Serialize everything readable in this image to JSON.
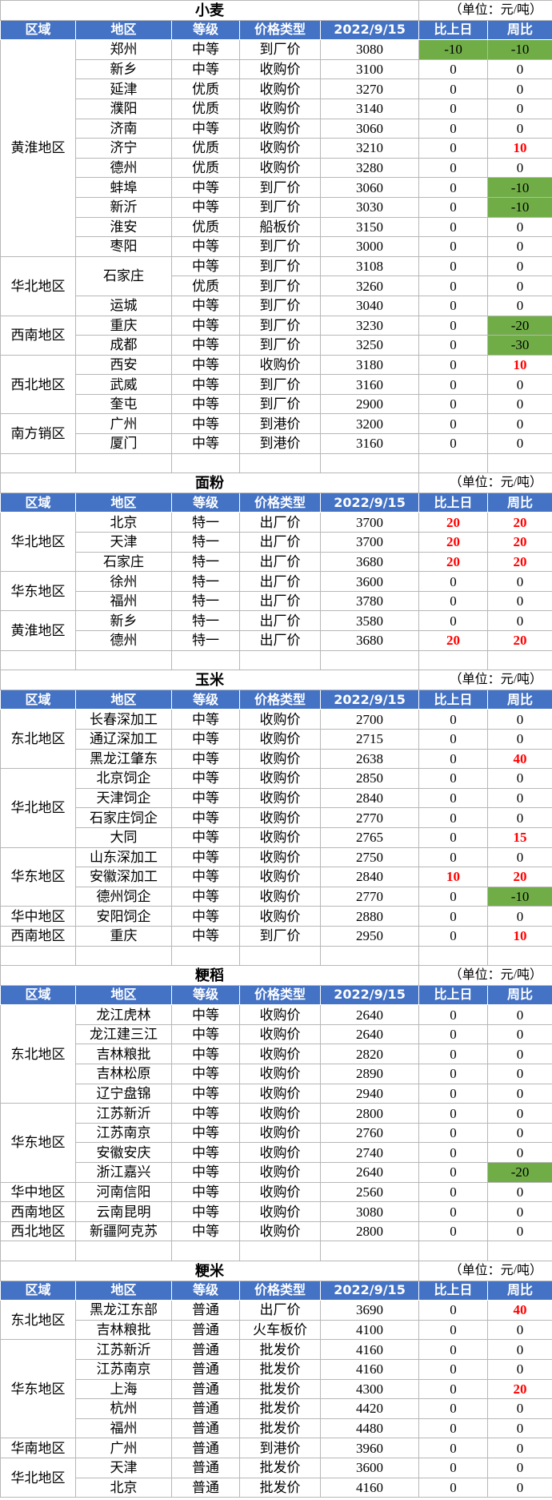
{
  "sections": [
    {
      "title": "小麦",
      "unit": "（单位：元/吨）",
      "headers": [
        "区域",
        "地区",
        "等级",
        "价格类型",
        "2022/9/15",
        "比上日",
        "周比"
      ],
      "groups": [
        {
          "region": "黄淮地区",
          "areas": [
            [
              "郑州",
              [
                [
                  "中等",
                  "到厂价",
                  3080,
                  -10,
                  -10
                ]
              ]
            ],
            [
              "新乡",
              [
                [
                  "中等",
                  "收购价",
                  3100,
                  0,
                  0
                ]
              ]
            ],
            [
              "延津",
              [
                [
                  "优质",
                  "收购价",
                  3270,
                  0,
                  0
                ]
              ]
            ],
            [
              "濮阳",
              [
                [
                  "优质",
                  "收购价",
                  3140,
                  0,
                  0
                ]
              ]
            ],
            [
              "济南",
              [
                [
                  "中等",
                  "收购价",
                  3060,
                  0,
                  0
                ]
              ]
            ],
            [
              "济宁",
              [
                [
                  "优质",
                  "收购价",
                  3210,
                  0,
                  10
                ]
              ]
            ],
            [
              "德州",
              [
                [
                  "优质",
                  "收购价",
                  3280,
                  0,
                  0
                ]
              ]
            ],
            [
              "蚌埠",
              [
                [
                  "中等",
                  "到厂价",
                  3060,
                  0,
                  -10
                ]
              ]
            ],
            [
              "新沂",
              [
                [
                  "中等",
                  "到厂价",
                  3030,
                  0,
                  -10
                ]
              ]
            ],
            [
              "淮安",
              [
                [
                  "优质",
                  "船板价",
                  3150,
                  0,
                  0
                ]
              ]
            ],
            [
              "枣阳",
              [
                [
                  "中等",
                  "到厂价",
                  3000,
                  0,
                  0
                ]
              ]
            ]
          ]
        },
        {
          "region": "华北地区",
          "areas": [
            [
              "石家庄",
              [
                [
                  "中等",
                  "到厂价",
                  3108,
                  0,
                  0
                ],
                [
                  "优质",
                  "到厂价",
                  3260,
                  0,
                  0
                ]
              ]
            ],
            [
              "运城",
              [
                [
                  "中等",
                  "到厂价",
                  3040,
                  0,
                  0
                ]
              ]
            ]
          ]
        },
        {
          "region": "西南地区",
          "areas": [
            [
              "重庆",
              [
                [
                  "中等",
                  "到厂价",
                  3230,
                  0,
                  -20
                ]
              ]
            ],
            [
              "成都",
              [
                [
                  "中等",
                  "到厂价",
                  3250,
                  0,
                  -30
                ]
              ]
            ]
          ]
        },
        {
          "region": "西北地区",
          "areas": [
            [
              "西安",
              [
                [
                  "中等",
                  "收购价",
                  3180,
                  0,
                  10
                ]
              ]
            ],
            [
              "武威",
              [
                [
                  "中等",
                  "到厂价",
                  3160,
                  0,
                  0
                ]
              ]
            ],
            [
              "奎屯",
              [
                [
                  "中等",
                  "到厂价",
                  2900,
                  0,
                  0
                ]
              ]
            ]
          ]
        },
        {
          "region": "南方销区",
          "areas": [
            [
              "广州",
              [
                [
                  "中等",
                  "到港价",
                  3200,
                  0,
                  0
                ]
              ]
            ],
            [
              "厦门",
              [
                [
                  "中等",
                  "到港价",
                  3160,
                  0,
                  0
                ]
              ]
            ]
          ]
        }
      ]
    },
    {
      "title": "面粉",
      "unit": "（单位：元/吨）",
      "headers": [
        "区域",
        "地区",
        "等级",
        "价格类型",
        "2022/9/15",
        "比上日",
        "周比"
      ],
      "groups": [
        {
          "region": "华北地区",
          "areas": [
            [
              "北京",
              [
                [
                  "特一",
                  "出厂价",
                  3700,
                  20,
                  20
                ]
              ]
            ],
            [
              "天津",
              [
                [
                  "特一",
                  "出厂价",
                  3700,
                  20,
                  20
                ]
              ]
            ],
            [
              "石家庄",
              [
                [
                  "特一",
                  "出厂价",
                  3680,
                  20,
                  20
                ]
              ]
            ]
          ]
        },
        {
          "region": "华东地区",
          "areas": [
            [
              "徐州",
              [
                [
                  "特一",
                  "出厂价",
                  3600,
                  0,
                  0
                ]
              ]
            ],
            [
              "福州",
              [
                [
                  "特一",
                  "出厂价",
                  3780,
                  0,
                  0
                ]
              ]
            ]
          ]
        },
        {
          "region": "黄淮地区",
          "areas": [
            [
              "新乡",
              [
                [
                  "特一",
                  "出厂价",
                  3580,
                  0,
                  0
                ]
              ]
            ],
            [
              "德州",
              [
                [
                  "特一",
                  "出厂价",
                  3680,
                  20,
                  20
                ]
              ]
            ]
          ]
        }
      ]
    },
    {
      "title": "玉米",
      "unit": "（单位：元/吨）",
      "headers": [
        "区域",
        "地区",
        "等级",
        "价格类型",
        "2022/9/15",
        "比上日",
        "周比"
      ],
      "groups": [
        {
          "region": "东北地区",
          "areas": [
            [
              "长春深加工",
              [
                [
                  "中等",
                  "收购价",
                  2700,
                  0,
                  0
                ]
              ]
            ],
            [
              "通辽深加工",
              [
                [
                  "中等",
                  "收购价",
                  2715,
                  0,
                  0
                ]
              ]
            ],
            [
              "黑龙江肇东",
              [
                [
                  "中等",
                  "收购价",
                  2638,
                  0,
                  40
                ]
              ]
            ]
          ]
        },
        {
          "region": "华北地区",
          "areas": [
            [
              "北京饲企",
              [
                [
                  "中等",
                  "收购价",
                  2850,
                  0,
                  0
                ]
              ]
            ],
            [
              "天津饲企",
              [
                [
                  "中等",
                  "收购价",
                  2840,
                  0,
                  0
                ]
              ]
            ],
            [
              "石家庄饲企",
              [
                [
                  "中等",
                  "收购价",
                  2770,
                  0,
                  0
                ]
              ]
            ],
            [
              "大同",
              [
                [
                  "中等",
                  "收购价",
                  2765,
                  0,
                  15
                ]
              ]
            ]
          ]
        },
        {
          "region": "华东地区",
          "areas": [
            [
              "山东深加工",
              [
                [
                  "中等",
                  "收购价",
                  2750,
                  0,
                  0
                ]
              ]
            ],
            [
              "安徽深加工",
              [
                [
                  "中等",
                  "收购价",
                  2840,
                  10,
                  20
                ]
              ]
            ],
            [
              "德州饲企",
              [
                [
                  "中等",
                  "收购价",
                  2770,
                  0,
                  -10
                ]
              ]
            ]
          ]
        },
        {
          "region": "华中地区",
          "areas": [
            [
              "安阳饲企",
              [
                [
                  "中等",
                  "收购价",
                  2880,
                  0,
                  0
                ]
              ]
            ]
          ]
        },
        {
          "region": "西南地区",
          "areas": [
            [
              "重庆",
              [
                [
                  "中等",
                  "到厂价",
                  2950,
                  0,
                  10
                ]
              ]
            ]
          ]
        }
      ]
    },
    {
      "title": "粳稻",
      "unit": "（单位：元/吨）",
      "headers": [
        "区域",
        "地区",
        "等级",
        "价格类型",
        "2022/9/15",
        "比上日",
        "周比"
      ],
      "groups": [
        {
          "region": "东北地区",
          "areas": [
            [
              "龙江虎林",
              [
                [
                  "中等",
                  "收购价",
                  2640,
                  0,
                  0
                ]
              ]
            ],
            [
              "龙江建三江",
              [
                [
                  "中等",
                  "收购价",
                  2640,
                  0,
                  0
                ]
              ]
            ],
            [
              "吉林粮批",
              [
                [
                  "中等",
                  "收购价",
                  2820,
                  0,
                  0
                ]
              ]
            ],
            [
              "吉林松原",
              [
                [
                  "中等",
                  "收购价",
                  2890,
                  0,
                  0
                ]
              ]
            ],
            [
              "辽宁盘锦",
              [
                [
                  "中等",
                  "收购价",
                  2940,
                  0,
                  0
                ]
              ]
            ]
          ]
        },
        {
          "region": "华东地区",
          "areas": [
            [
              "江苏新沂",
              [
                [
                  "中等",
                  "收购价",
                  2800,
                  0,
                  0
                ]
              ]
            ],
            [
              "江苏南京",
              [
                [
                  "中等",
                  "收购价",
                  2760,
                  0,
                  0
                ]
              ]
            ],
            [
              "安徽安庆",
              [
                [
                  "中等",
                  "收购价",
                  2740,
                  0,
                  0
                ]
              ]
            ],
            [
              "浙江嘉兴",
              [
                [
                  "中等",
                  "收购价",
                  2640,
                  0,
                  -20
                ]
              ]
            ]
          ]
        },
        {
          "region": "华中地区",
          "areas": [
            [
              "河南信阳",
              [
                [
                  "中等",
                  "收购价",
                  2560,
                  0,
                  0
                ]
              ]
            ]
          ]
        },
        {
          "region": "西南地区",
          "areas": [
            [
              "云南昆明",
              [
                [
                  "中等",
                  "收购价",
                  3080,
                  0,
                  0
                ]
              ]
            ]
          ]
        },
        {
          "region": "西北地区",
          "areas": [
            [
              "新疆阿克苏",
              [
                [
                  "中等",
                  "收购价",
                  2800,
                  0,
                  0
                ]
              ]
            ]
          ]
        }
      ]
    },
    {
      "title": "粳米",
      "unit": "（单位：元/吨）",
      "headers": [
        "区域",
        "地区",
        "等级",
        "价格类型",
        "2022/9/15",
        "比上日",
        "周比"
      ],
      "groups": [
        {
          "region": "东北地区",
          "areas": [
            [
              "黑龙江东部",
              [
                [
                  "普通",
                  "出厂价",
                  3690,
                  0,
                  40
                ]
              ]
            ],
            [
              "吉林粮批",
              [
                [
                  "普通",
                  "火车板价",
                  4100,
                  0,
                  0
                ]
              ]
            ]
          ]
        },
        {
          "region": "华东地区",
          "areas": [
            [
              "江苏新沂",
              [
                [
                  "普通",
                  "批发价",
                  4160,
                  0,
                  0
                ]
              ]
            ],
            [
              "江苏南京",
              [
                [
                  "普通",
                  "批发价",
                  4160,
                  0,
                  0
                ]
              ]
            ],
            [
              "上海",
              [
                [
                  "普通",
                  "批发价",
                  4300,
                  0,
                  20
                ]
              ]
            ],
            [
              "杭州",
              [
                [
                  "普通",
                  "批发价",
                  4420,
                  0,
                  0
                ]
              ]
            ],
            [
              "福州",
              [
                [
                  "普通",
                  "批发价",
                  4480,
                  0,
                  0
                ]
              ]
            ]
          ]
        },
        {
          "region": "华南地区",
          "areas": [
            [
              "广州",
              [
                [
                  "普通",
                  "到港价",
                  3960,
                  0,
                  0
                ]
              ]
            ]
          ]
        },
        {
          "region": "华北地区",
          "areas": [
            [
              "天津",
              [
                [
                  "普通",
                  "批发价",
                  3600,
                  0,
                  0
                ]
              ]
            ],
            [
              "北京",
              [
                [
                  "普通",
                  "批发价",
                  4160,
                  0,
                  0
                ]
              ]
            ]
          ]
        }
      ]
    }
  ]
}
